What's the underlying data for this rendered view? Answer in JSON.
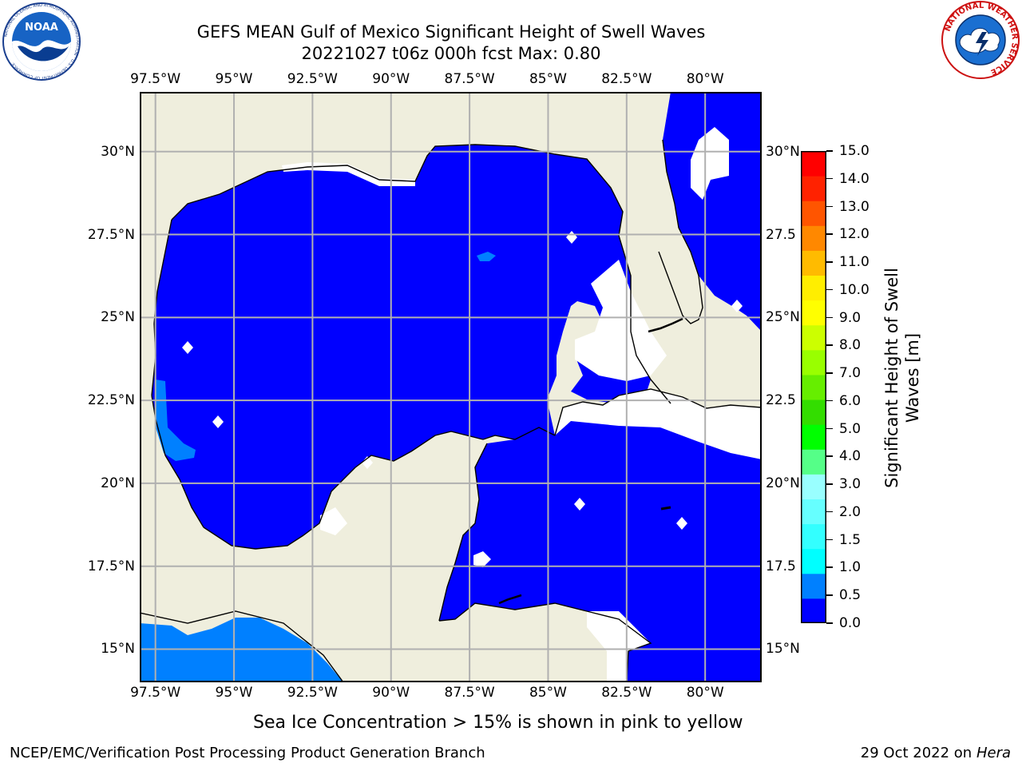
{
  "title": {
    "line1": "GEFS MEAN Gulf of Mexico Significant Height of Swell Waves",
    "line2": "20221027 t06z 000h fcst   Max: 0.80"
  },
  "logos": {
    "left_icon": "noaa-logo-icon",
    "right_icon": "nws-logo-icon",
    "left_text": "NOAA",
    "left_ring_text": "NATIONAL OCEANIC AND ATMOSPHERIC ADMINISTRATION · U.S. DEPARTMENT OF COMMERCE",
    "right_ring_text": "NATIONAL WEATHER SERVICE"
  },
  "map": {
    "lon_ticks": [
      "97.5°W",
      "95°W",
      "92.5°W",
      "90°W",
      "87.5°W",
      "85°W",
      "82.5°W",
      "80°W"
    ],
    "lon_values": [
      -97.5,
      -95,
      -92.5,
      -90,
      -87.5,
      -85,
      -82.5,
      -80
    ],
    "lat_ticks_left": [
      "30°N",
      "27.5°N",
      "25°N",
      "22.5°N",
      "20°N",
      "17.5°N",
      "15°N"
    ],
    "lat_ticks_right": [
      "30°N",
      "27.5",
      "25°N",
      "22.5",
      "20°N",
      "17.5",
      "15°N"
    ],
    "lat_values": [
      30,
      27.5,
      25,
      22.5,
      20,
      17.5,
      15
    ],
    "extent": {
      "lon_min": -98,
      "lon_max": -78.2,
      "lat_min": 14,
      "lat_max": 31.8
    },
    "colors": {
      "land": "#efeedd",
      "water": "#0000ff",
      "grid": "#b0b0b0",
      "swell_05": "#0080ff"
    }
  },
  "colorbar": {
    "labels": [
      "15.0",
      "14.0",
      "13.0",
      "12.0",
      "11.0",
      "10.0",
      "9.0",
      "8.0",
      "7.0",
      "6.0",
      "5.0",
      "4.0",
      "3.0",
      "2.0",
      "1.5",
      "1.0",
      "0.5",
      "0.0"
    ],
    "colors_bottom_to_top": [
      "#0000ff",
      "#0080ff",
      "#00ffff",
      "#33ffff",
      "#66ffff",
      "#99ffff",
      "#55ff88",
      "#00ff00",
      "#33dd00",
      "#66ee00",
      "#99ff00",
      "#ccff00",
      "#ffff00",
      "#ffee00",
      "#ffbb00",
      "#ff8800",
      "#ff5500",
      "#ff2200",
      "#ff0000"
    ],
    "title_line1": "Significant Height of Swell",
    "title_line2": "Waves [m]"
  },
  "note": "Sea Ice Concentration > 15% is shown in pink to yellow",
  "footer": {
    "left": "NCEP/EMC/Verification Post Processing Product Generation Branch",
    "date": "29 Oct 2022 on ",
    "host": "Hera"
  }
}
